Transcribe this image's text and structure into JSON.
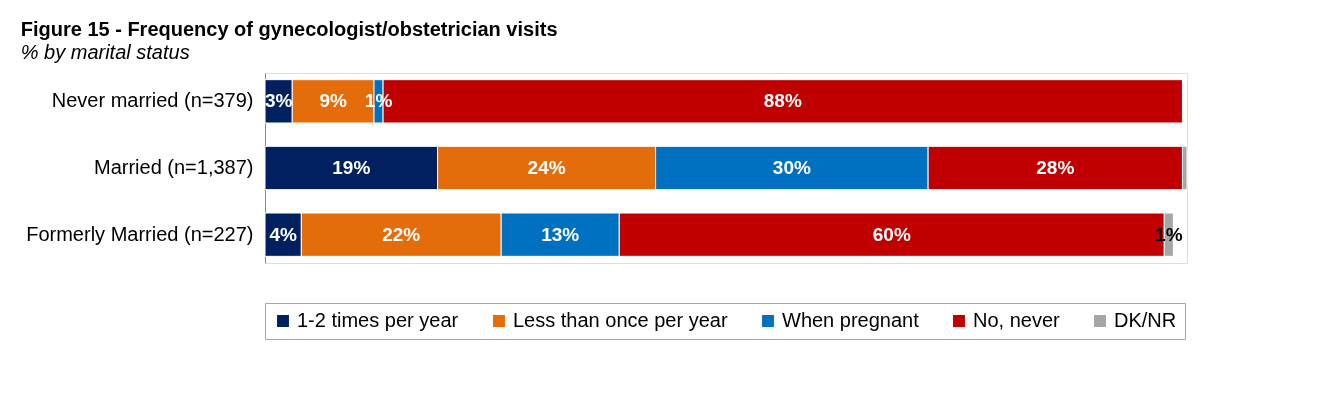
{
  "chart_data": {
    "type": "bar",
    "orientation": "horizontal",
    "stacked": true,
    "title": "Figure 15 - Frequency of gynecologist/obstetrician visits",
    "subtitle": "% by marital status",
    "categories": [
      "Never married (n=379)",
      "Married (n=1,387)",
      "Formerly Married (n=227)"
    ],
    "series": [
      {
        "name": "1-2 times per year",
        "color": "#002060",
        "values": [
          3,
          19,
          4
        ],
        "value_labels": [
          "3%",
          "19%",
          "4%"
        ]
      },
      {
        "name": "Less than once per year",
        "color": "#e46c0a",
        "values": [
          9,
          24,
          22
        ],
        "value_labels": [
          "9%",
          "24%",
          "22%"
        ]
      },
      {
        "name": "When pregnant",
        "color": "#0070c0",
        "values": [
          1,
          30,
          13
        ],
        "value_labels": [
          "1%",
          "30%",
          "13%"
        ]
      },
      {
        "name": "No, never",
        "color": "#c00000",
        "values": [
          88,
          28,
          60
        ],
        "value_labels": [
          "88%",
          "28%",
          "60%"
        ]
      },
      {
        "name": "DK/NR",
        "color": "#a6a6a6",
        "values": [
          null,
          0.5,
          1
        ],
        "value_labels": [
          null,
          null,
          "1%"
        ]
      }
    ],
    "legend": "bottom",
    "grid": false,
    "tick_labels": "y"
  }
}
